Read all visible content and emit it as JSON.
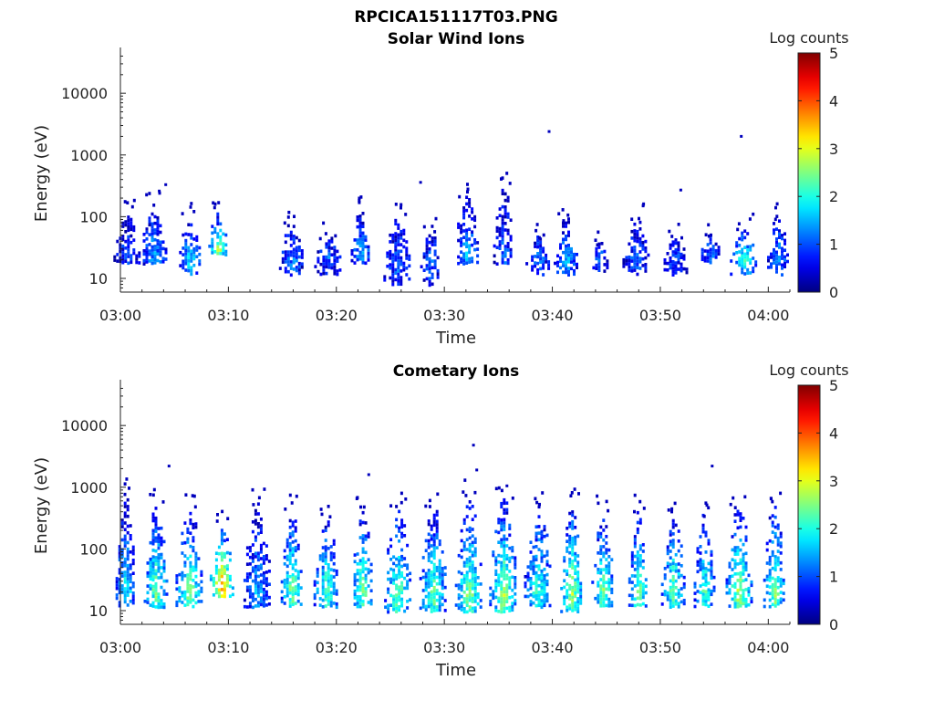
{
  "figure_title": "RPCICA151117T03.PNG",
  "chart_data": [
    {
      "type": "heatmap",
      "title": "Solar Wind Ions",
      "xlabel": "Time",
      "ylabel": "Energy (eV)",
      "y_scale": "log",
      "ylim": [
        6,
        45000
      ],
      "xlim_minutes": [
        0,
        62
      ],
      "x_ticks": [
        "03:00",
        "03:10",
        "03:20",
        "03:30",
        "03:40",
        "03:50",
        "04:00"
      ],
      "y_ticks": [
        "10",
        "100",
        "1000",
        "10000"
      ],
      "colorbar": {
        "label": "Log counts",
        "ticks": [
          "0",
          "1",
          "2",
          "3",
          "4",
          "5"
        ],
        "range": [
          0,
          5
        ],
        "colormap": "jet"
      },
      "bursts": [
        {
          "t": 0.5,
          "emin": 18,
          "emax": 110,
          "peak": 1.0
        },
        {
          "t": 3.0,
          "emin": 18,
          "emax": 140,
          "peak": 1.5
        },
        {
          "t": 6.3,
          "emin": 12,
          "emax": 90,
          "peak": 1.7
        },
        {
          "t": 9.0,
          "emin": 25,
          "emax": 110,
          "peak": 2.8
        },
        {
          "t": 15.8,
          "emin": 12,
          "emax": 75,
          "peak": 1.3
        },
        {
          "t": 19.2,
          "emin": 12,
          "emax": 45,
          "peak": 1.1
        },
        {
          "t": 22.2,
          "emin": 18,
          "emax": 120,
          "peak": 1.6
        },
        {
          "t": 25.6,
          "emin": 8,
          "emax": 90,
          "peak": 1.1
        },
        {
          "t": 28.6,
          "emin": 8,
          "emax": 60,
          "peak": 1.2
        },
        {
          "t": 32.0,
          "emin": 18,
          "emax": 210,
          "peak": 1.6
        },
        {
          "t": 35.4,
          "emin": 18,
          "emax": 330,
          "peak": 1.2
        },
        {
          "t": 38.6,
          "emin": 12,
          "emax": 45,
          "peak": 1.3
        },
        {
          "t": 41.2,
          "emin": 12,
          "emax": 90,
          "peak": 1.6
        },
        {
          "t": 44.3,
          "emin": 12,
          "emax": 35,
          "peak": 1.2
        },
        {
          "t": 47.7,
          "emin": 12,
          "emax": 90,
          "peak": 1.1
        },
        {
          "t": 51.3,
          "emin": 12,
          "emax": 45,
          "peak": 1.0
        },
        {
          "t": 54.5,
          "emin": 18,
          "emax": 45,
          "peak": 1.3
        },
        {
          "t": 57.7,
          "emin": 12,
          "emax": 60,
          "peak": 2.1
        },
        {
          "t": 60.8,
          "emin": 12,
          "emax": 95,
          "peak": 1.4
        }
      ],
      "isolated_points": [
        {
          "t": 3.6,
          "e": 260,
          "v": 0.3
        },
        {
          "t": 4.2,
          "e": 330,
          "v": 0.3
        },
        {
          "t": 27.8,
          "e": 360,
          "v": 0.3
        },
        {
          "t": 39.7,
          "e": 2400,
          "v": 0.3
        },
        {
          "t": 51.9,
          "e": 270,
          "v": 0.3
        },
        {
          "t": 57.5,
          "e": 2000,
          "v": 0.3
        }
      ]
    },
    {
      "type": "heatmap",
      "title": "Cometary Ions",
      "xlabel": "Time",
      "ylabel": "Energy (eV)",
      "y_scale": "log",
      "ylim": [
        6,
        45000
      ],
      "xlim_minutes": [
        0,
        62
      ],
      "x_ticks": [
        "03:00",
        "03:10",
        "03:20",
        "03:30",
        "03:40",
        "03:50",
        "04:00"
      ],
      "y_ticks": [
        "10",
        "100",
        "1000",
        "10000"
      ],
      "colorbar": {
        "label": "Log counts",
        "ticks": [
          "0",
          "1",
          "2",
          "3",
          "4",
          "5"
        ],
        "range": [
          0,
          5
        ],
        "colormap": "jet"
      },
      "bursts": [
        {
          "t": 0.4,
          "emin": 12,
          "emax": 800,
          "peak": 2.0
        },
        {
          "t": 3.2,
          "emin": 12,
          "emax": 550,
          "peak": 2.5
        },
        {
          "t": 6.3,
          "emin": 12,
          "emax": 450,
          "peak": 2.6
        },
        {
          "t": 9.3,
          "emin": 18,
          "emax": 240,
          "peak": 3.8
        },
        {
          "t": 12.6,
          "emin": 12,
          "emax": 500,
          "peak": 1.5
        },
        {
          "t": 15.8,
          "emin": 12,
          "emax": 400,
          "peak": 2.6
        },
        {
          "t": 19.0,
          "emin": 12,
          "emax": 300,
          "peak": 2.4
        },
        {
          "t": 22.3,
          "emin": 12,
          "emax": 450,
          "peak": 2.6
        },
        {
          "t": 25.6,
          "emin": 10,
          "emax": 500,
          "peak": 2.5
        },
        {
          "t": 28.9,
          "emin": 10,
          "emax": 450,
          "peak": 2.4
        },
        {
          "t": 32.2,
          "emin": 10,
          "emax": 700,
          "peak": 2.6
        },
        {
          "t": 35.4,
          "emin": 10,
          "emax": 650,
          "peak": 2.7
        },
        {
          "t": 38.6,
          "emin": 12,
          "emax": 500,
          "peak": 2.2
        },
        {
          "t": 41.7,
          "emin": 10,
          "emax": 550,
          "peak": 2.8
        },
        {
          "t": 44.6,
          "emin": 12,
          "emax": 400,
          "peak": 2.6
        },
        {
          "t": 47.9,
          "emin": 12,
          "emax": 420,
          "peak": 2.5
        },
        {
          "t": 51.1,
          "emin": 12,
          "emax": 360,
          "peak": 2.5
        },
        {
          "t": 54.0,
          "emin": 12,
          "emax": 350,
          "peak": 2.3
        },
        {
          "t": 57.2,
          "emin": 12,
          "emax": 450,
          "peak": 2.9
        },
        {
          "t": 60.5,
          "emin": 12,
          "emax": 600,
          "peak": 2.6
        }
      ],
      "isolated_points": [
        {
          "t": 4.5,
          "e": 2200,
          "v": 0.3
        },
        {
          "t": 23.0,
          "e": 1600,
          "v": 0.3
        },
        {
          "t": 32.7,
          "e": 4800,
          "v": 0.3
        },
        {
          "t": 33.0,
          "e": 1900,
          "v": 0.3
        },
        {
          "t": 35.8,
          "e": 1050,
          "v": 0.3
        },
        {
          "t": 54.8,
          "e": 2200,
          "v": 0.3
        }
      ]
    }
  ]
}
